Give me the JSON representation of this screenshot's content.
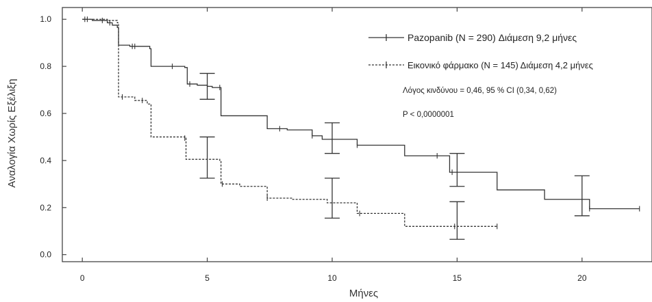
{
  "chart_data": {
    "type": "line",
    "title": "",
    "xlabel": "Μήνες",
    "ylabel": "Αναλογία Χωρίς Εξέλιξη",
    "xlim": [
      -0.8,
      22.8
    ],
    "ylim": [
      -0.03,
      1.05
    ],
    "x_ticks": [
      "0",
      "5",
      "10",
      "15",
      "20"
    ],
    "y_ticks": [
      "0.0",
      "0.2",
      "0.4",
      "0.6",
      "0.8",
      "1.0"
    ],
    "grid": false,
    "legend_position": "top-right",
    "series": [
      {
        "name": "Pazopanib (N = 290) Διάμεση 9,2 μήνες",
        "line_style": "solid",
        "color": "#333333",
        "steps": [
          [
            0,
            1.0
          ],
          [
            0.4,
            0.995
          ],
          [
            1.0,
            0.985
          ],
          [
            1.2,
            0.975
          ],
          [
            1.4,
            0.965
          ],
          [
            1.45,
            0.89
          ],
          [
            1.9,
            0.885
          ],
          [
            2.7,
            0.875
          ],
          [
            2.75,
            0.8
          ],
          [
            4.1,
            0.795
          ],
          [
            4.2,
            0.725
          ],
          [
            4.6,
            0.72
          ],
          [
            5.0,
            0.715
          ],
          [
            5.2,
            0.71
          ],
          [
            5.55,
            0.59
          ],
          [
            7.4,
            0.535
          ],
          [
            8.2,
            0.53
          ],
          [
            9.2,
            0.505
          ],
          [
            9.6,
            0.49
          ],
          [
            11.0,
            0.465
          ],
          [
            12.9,
            0.42
          ],
          [
            14.7,
            0.35
          ],
          [
            16.6,
            0.275
          ],
          [
            18.5,
            0.235
          ],
          [
            20.3,
            0.195
          ],
          [
            22.3,
            0.195
          ]
        ],
        "censor_ticks": [
          0.1,
          0.2,
          0.8,
          1.1,
          2.0,
          2.1,
          3.6,
          4.3,
          5.5,
          7.9,
          9.2,
          11.0,
          14.2,
          14.8,
          20.3,
          22.3
        ],
        "confidence_intervals": [
          {
            "x": 5,
            "low": 0.66,
            "high": 0.77
          },
          {
            "x": 10,
            "low": 0.43,
            "high": 0.56
          },
          {
            "x": 15,
            "low": 0.29,
            "high": 0.43
          },
          {
            "x": 20,
            "low": 0.165,
            "high": 0.335
          }
        ]
      },
      {
        "name": "Εικονικό φάρμακο (N = 145) Διάμεση 4,2 μήνες",
        "line_style": "dashed",
        "color": "#333333",
        "steps": [
          [
            0,
            1.0
          ],
          [
            1.0,
            0.995
          ],
          [
            1.4,
            0.985
          ],
          [
            1.45,
            0.67
          ],
          [
            2.1,
            0.655
          ],
          [
            2.6,
            0.64
          ],
          [
            2.75,
            0.5
          ],
          [
            4.1,
            0.495
          ],
          [
            4.15,
            0.405
          ],
          [
            5.5,
            0.4
          ],
          [
            5.55,
            0.3
          ],
          [
            6.3,
            0.29
          ],
          [
            7.4,
            0.24
          ],
          [
            8.4,
            0.235
          ],
          [
            9.8,
            0.22
          ],
          [
            11.0,
            0.175
          ],
          [
            12.9,
            0.12
          ],
          [
            16.6,
            0.12
          ]
        ],
        "censor_ticks": [
          1.6,
          2.4,
          4.1,
          5.6,
          7.4,
          11.1,
          14.9,
          16.6
        ],
        "confidence_intervals": [
          {
            "x": 5,
            "low": 0.325,
            "high": 0.5
          },
          {
            "x": 10,
            "low": 0.155,
            "high": 0.325
          },
          {
            "x": 15,
            "low": 0.065,
            "high": 0.225
          }
        ]
      }
    ],
    "annotations": [
      {
        "text": "Λόγος κινδύνου = 0,46, 95 % CI (0,34, 0,62)"
      },
      {
        "text": "P < 0,0000001"
      }
    ]
  }
}
